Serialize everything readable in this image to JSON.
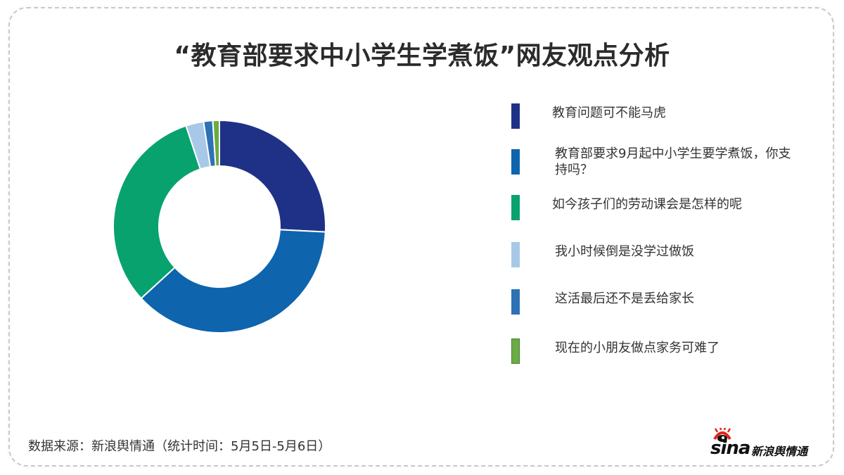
{
  "title": "“教育部要求中小学生学煮饭”网友观点分析",
  "chart_data": {
    "type": "pie",
    "variant": "donut",
    "title": "“教育部要求中小学生学煮饭”网友观点分析",
    "start_angle": "top, clockwise",
    "categories": [
      "教育问题可不能马虎",
      "教育部要求9月起中小学生要学煮饭，你支持吗？",
      "如今孩子们的劳动课会是怎样的呢",
      "我小时候倒是没学过做饭",
      "这活最后还不是丢给家长",
      "现在的小朋友做点家务可难了"
    ],
    "values": [
      25.8,
      37.4,
      31.7,
      2.7,
      1.4,
      1.0
    ],
    "colors": [
      "#1f3187",
      "#0e64ad",
      "#08a26f",
      "#a8c8e8",
      "#2f71b5",
      "#6aac45"
    ],
    "legend_position": "right",
    "data_labels": false
  },
  "legend": [
    {
      "label": "教育问题可不能马虎",
      "color": "#1f3187"
    },
    {
      "label": "教育部要求9月起中小学生要学煮饭，你支持吗？",
      "color": "#0e64ad"
    },
    {
      "label": "如今孩子们的劳动课会是怎样的呢",
      "color": "#08a26f"
    },
    {
      "label": "我小时候倒是没学过做饭",
      "color": "#a8c8e8"
    },
    {
      "label": "这活最后还不是丢给家长",
      "color": "#2f71b5"
    },
    {
      "label": "现在的小朋友做点家务可难了",
      "color": "#6aac45"
    }
  ],
  "footer": {
    "source": "数据来源：新浪舆情通（统计时间：5月5日-5月6日）",
    "logo_brand": "sina",
    "logo_text": "新浪舆情通"
  }
}
